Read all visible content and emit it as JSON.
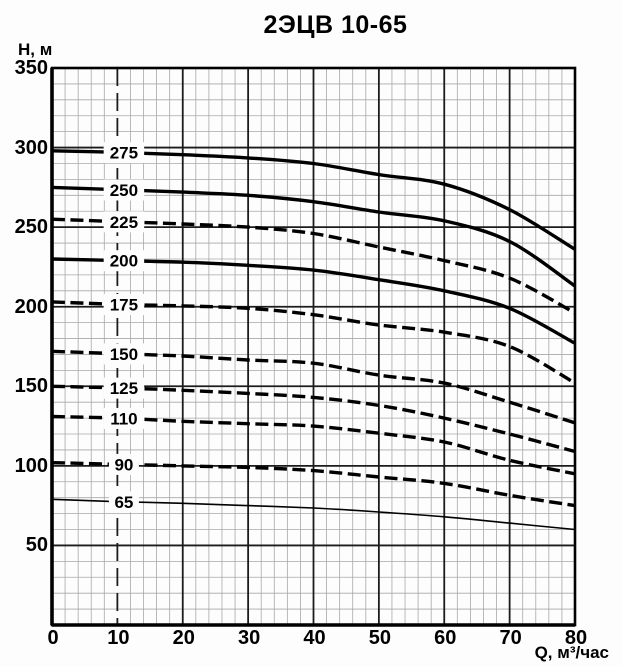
{
  "title": "2ЭЦВ 10-65",
  "axes": {
    "y_label": "Н, м",
    "x_label": "Q, м³/час",
    "y_ticks": [
      350,
      300,
      250,
      200,
      150,
      100,
      50
    ],
    "x_ticks": [
      0,
      10,
      20,
      30,
      40,
      50,
      60,
      70,
      80
    ]
  },
  "colors": {
    "background": "#fdfdfd",
    "text": "#000000",
    "curve": "#000000",
    "grid_major": "#1c1c1c",
    "grid_minor": "#a8a8a8",
    "axis_border": "#000000"
  },
  "chart_data": {
    "type": "line",
    "title": "2ЭЦВ 10-65",
    "xlabel": "Q, м³/час",
    "ylabel": "Н, м",
    "xlim": [
      0,
      80
    ],
    "ylim": [
      0,
      350
    ],
    "x_major_step": 10,
    "y_major_step": 50,
    "x_minor_step": 2,
    "y_minor_step": 10,
    "grid": "on",
    "dashed_major_x_line": 10,
    "curve_label_q": 11,
    "x": [
      0,
      10,
      20,
      30,
      40,
      50,
      60,
      70,
      80
    ],
    "series": [
      {
        "name": "275",
        "line_style": "solid",
        "values": [
          298,
          297,
          295.5,
          293.5,
          290,
          283,
          277,
          261,
          236
        ]
      },
      {
        "name": "250",
        "line_style": "solid",
        "values": [
          275,
          273.5,
          272,
          270,
          266,
          259.5,
          254,
          241,
          213
        ]
      },
      {
        "name": "225",
        "line_style": "dashed",
        "values": [
          255,
          253.5,
          252,
          250,
          246,
          237.5,
          229,
          218,
          196
        ]
      },
      {
        "name": "200",
        "line_style": "solid",
        "values": [
          230,
          229,
          228,
          226,
          223,
          217,
          210,
          199,
          177
        ]
      },
      {
        "name": "175",
        "line_style": "dashed",
        "values": [
          203,
          201.5,
          200.5,
          199,
          195,
          188.5,
          184,
          175,
          152
        ]
      },
      {
        "name": "150",
        "line_style": "dashed",
        "values": [
          172,
          170.5,
          169,
          166.5,
          164.5,
          157,
          152,
          140,
          127
        ]
      },
      {
        "name": "125",
        "line_style": "dashed",
        "values": [
          150,
          149,
          147.5,
          145.5,
          143,
          138,
          130,
          120,
          109
        ]
      },
      {
        "name": "110",
        "line_style": "dashed",
        "values": [
          131,
          130,
          128,
          126.5,
          125,
          120.5,
          115,
          103.5,
          95
        ]
      },
      {
        "name": "90",
        "line_style": "dashed",
        "values": [
          102,
          101,
          100,
          99,
          97,
          93,
          89,
          81.5,
          75
        ]
      },
      {
        "name": "65",
        "line_style": "thin",
        "values": [
          79,
          77.5,
          76.5,
          75,
          73.5,
          71,
          68,
          64,
          60
        ]
      }
    ]
  }
}
